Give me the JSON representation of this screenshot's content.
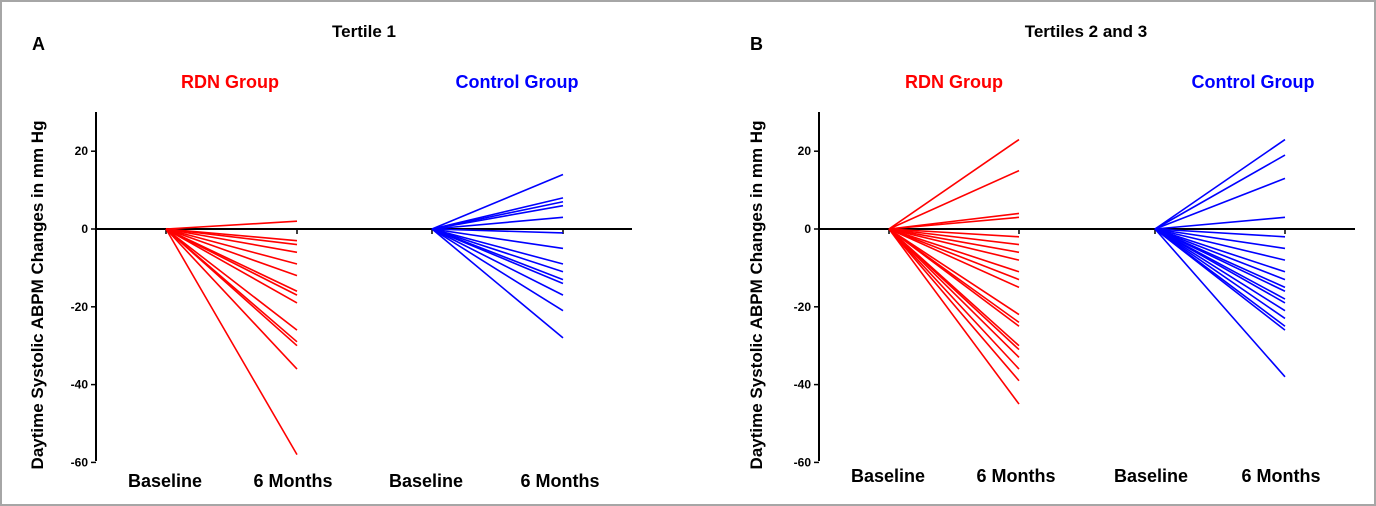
{
  "panels": [
    {
      "letter": "A",
      "title": "Tertile 1",
      "chart_data": {
        "type": "line",
        "ylabel": "Daytime Systolic ABPM Changes in mm Hg",
        "ylim": [
          -60,
          30
        ],
        "yticks": [
          -60,
          -40,
          -20,
          0,
          20
        ],
        "x_labels": [
          "Baseline",
          "6 Months",
          "Baseline",
          "6 Months"
        ],
        "colors": {
          "rdn": "#ff0000",
          "control": "#0000ff",
          "axis": "#000000"
        },
        "groups": [
          {
            "name": "RDN Group",
            "baseline": 0,
            "six_month_values": [
              2,
              -3,
              -4,
              -6,
              -9,
              -12,
              -16,
              -17,
              -19,
              -26,
              -29,
              -30,
              -36,
              -58
            ]
          },
          {
            "name": "Control Group",
            "baseline": 0,
            "six_month_values": [
              14,
              8,
              7,
              6,
              3,
              -1,
              -5,
              -9,
              -11,
              -13,
              -14,
              -17,
              -21,
              -28
            ]
          }
        ]
      }
    },
    {
      "letter": "B",
      "title": "Tertiles 2 and 3",
      "chart_data": {
        "type": "line",
        "ylabel": "Daytime Systolic ABPM Changes in mm Hg",
        "ylim": [
          -60,
          30
        ],
        "yticks": [
          -60,
          -40,
          -20,
          0,
          20
        ],
        "x_labels": [
          "Baseline",
          "6 Months",
          "Baseline",
          "6 Months"
        ],
        "colors": {
          "rdn": "#ff0000",
          "control": "#0000ff",
          "axis": "#000000"
        },
        "groups": [
          {
            "name": "RDN Group",
            "baseline": 0,
            "six_month_values": [
              23,
              15,
              4,
              3,
              -2,
              -4,
              -6,
              -8,
              -11,
              -13,
              -15,
              -22,
              -24,
              -25,
              -30,
              -31,
              -33,
              -36,
              -39,
              -45
            ]
          },
          {
            "name": "Control Group",
            "baseline": 0,
            "six_month_values": [
              23,
              19,
              13,
              3,
              -2,
              -5,
              -8,
              -11,
              -13,
              -15,
              -16,
              -18,
              -19,
              -21,
              -23,
              -25,
              -26,
              -38
            ]
          }
        ]
      }
    }
  ]
}
